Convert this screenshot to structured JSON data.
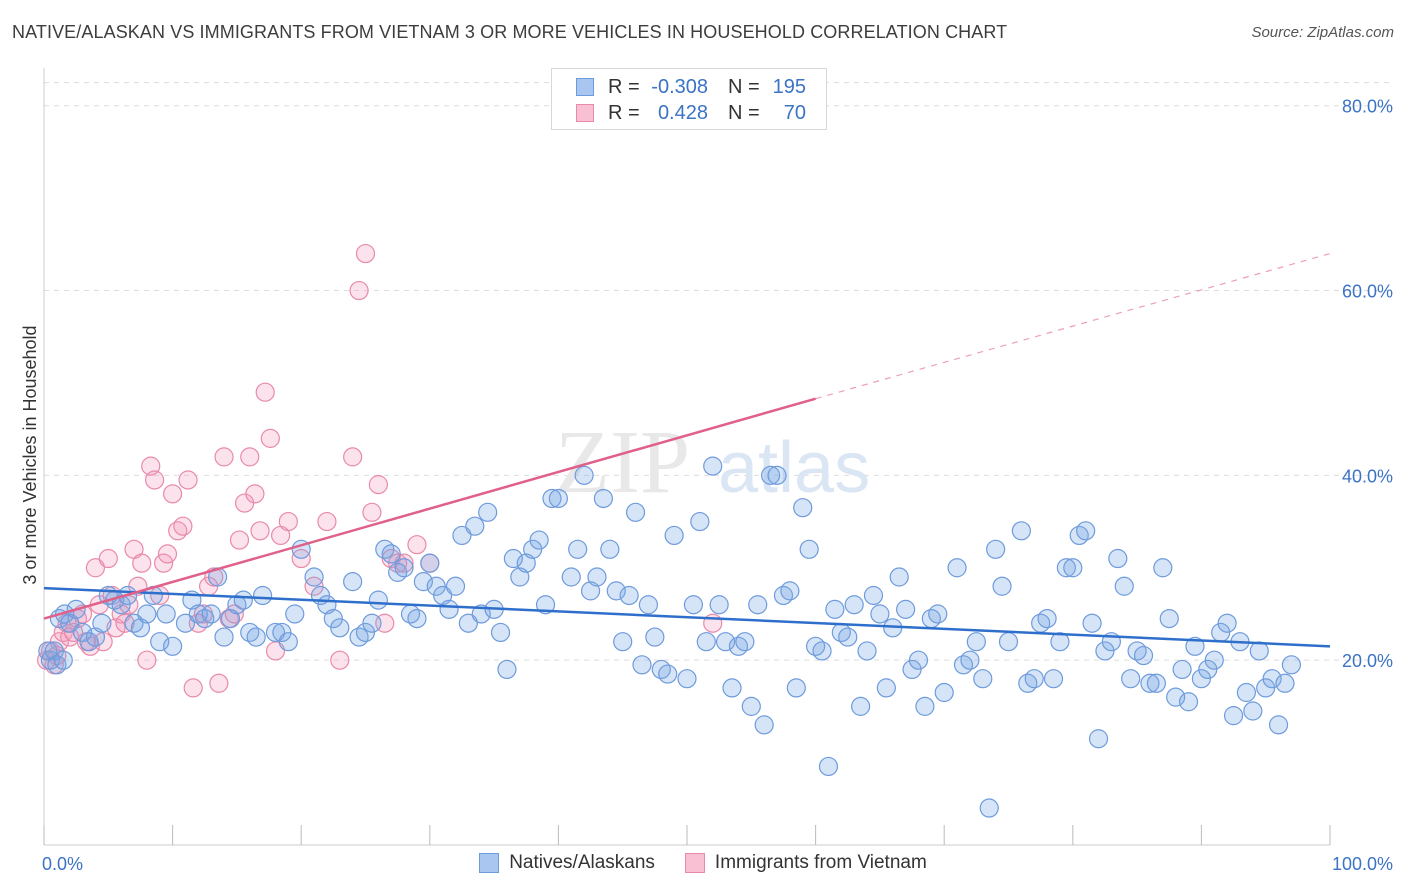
{
  "title": "NATIVE/ALASKAN VS IMMIGRANTS FROM VIETNAM 3 OR MORE VEHICLES IN HOUSEHOLD CORRELATION CHART",
  "source": "Source: ZipAtlas.com",
  "watermark": {
    "zip": "ZIP",
    "atlas": "atlas"
  },
  "legend_top": [
    {
      "swatch_color": "#a9c6f0",
      "border_color": "#6e9bdc",
      "r_label": "R =",
      "r_value": "-0.308",
      "n_label": "N =",
      "n_value": "195"
    },
    {
      "swatch_color": "#f8c0d2",
      "border_color": "#e88aa8",
      "r_label": "R =",
      "r_value": "0.428",
      "n_label": "N =",
      "n_value": "70"
    }
  ],
  "legend_bottom": [
    {
      "label": "Natives/Alaskans",
      "swatch_color": "#a9c6f0",
      "border_color": "#6e9bdc"
    },
    {
      "label": "Immigrants from Vietnam",
      "swatch_color": "#f8c0d2",
      "border_color": "#e88aa8"
    }
  ],
  "colors": {
    "blue_fill": "rgba(120,165,230,0.30)",
    "blue_stroke": "#6e9bdc",
    "blue_line": "#2f6fcc",
    "pink_fill": "rgba(245,150,185,0.28)",
    "pink_stroke": "#e88aa8",
    "pink_line": "#e0608a",
    "tick_label": "#3b73c5",
    "grid": "#dddddd"
  },
  "chart_data": {
    "type": "scatter",
    "ylabel": "3 or more Vehicles in Household",
    "xlim": [
      0,
      100
    ],
    "ylim": [
      0,
      83
    ],
    "x_tick_labels": [
      {
        "value": 0,
        "label": "0.0%"
      },
      {
        "value": 100,
        "label": "100.0%"
      }
    ],
    "y_tick_labels": [
      {
        "value": 20,
        "label": "20.0%"
      },
      {
        "value": 40,
        "label": "40.0%"
      },
      {
        "value": 60,
        "label": "60.0%"
      },
      {
        "value": 80,
        "label": "80.0%"
      }
    ],
    "grid": true,
    "series": [
      {
        "name": "Natives/Alaskans",
        "trend": {
          "x0": 0,
          "y0": 27.8,
          "x1": 100,
          "y1": 21.5
        },
        "points": [
          [
            0.3,
            21
          ],
          [
            0.5,
            20
          ],
          [
            0.8,
            21
          ],
          [
            1,
            19.5
          ],
          [
            1.5,
            20
          ],
          [
            1.2,
            24.5
          ],
          [
            1.6,
            25
          ],
          [
            2,
            24
          ],
          [
            2.5,
            25.5
          ],
          [
            3,
            23
          ],
          [
            3.5,
            22
          ],
          [
            4,
            22.5
          ],
          [
            4.5,
            24
          ],
          [
            5,
            27
          ],
          [
            5.5,
            26.5
          ],
          [
            6,
            26
          ],
          [
            6.5,
            27
          ],
          [
            7,
            24
          ],
          [
            7.5,
            23.5
          ],
          [
            8,
            25
          ],
          [
            8.5,
            27
          ],
          [
            9,
            22
          ],
          [
            9.5,
            25
          ],
          [
            10,
            21.5
          ],
          [
            11,
            24
          ],
          [
            11.5,
            26.5
          ],
          [
            12,
            25
          ],
          [
            12.5,
            24.5
          ],
          [
            13,
            25
          ],
          [
            13.5,
            29
          ],
          [
            14,
            22.5
          ],
          [
            14.5,
            24.5
          ],
          [
            15,
            26
          ],
          [
            15.5,
            26.5
          ],
          [
            16,
            23
          ],
          [
            16.5,
            22.5
          ],
          [
            17,
            27
          ],
          [
            18,
            23
          ],
          [
            18.5,
            23
          ],
          [
            19,
            22
          ],
          [
            19.5,
            25
          ],
          [
            20,
            32
          ],
          [
            21,
            29
          ],
          [
            21.5,
            27
          ],
          [
            22,
            26
          ],
          [
            22.5,
            24.5
          ],
          [
            23,
            23.5
          ],
          [
            24,
            28.5
          ],
          [
            24.5,
            22.5
          ],
          [
            25,
            23
          ],
          [
            25.5,
            24
          ],
          [
            26,
            26.5
          ],
          [
            26.5,
            32
          ],
          [
            27,
            31.5
          ],
          [
            27.5,
            29.5
          ],
          [
            28,
            30
          ],
          [
            28.5,
            25
          ],
          [
            29,
            24.5
          ],
          [
            29.5,
            28.5
          ],
          [
            30,
            30.5
          ],
          [
            30.5,
            28
          ],
          [
            31,
            27
          ],
          [
            31.5,
            25.5
          ],
          [
            32,
            28
          ],
          [
            32.5,
            33.5
          ],
          [
            33,
            24
          ],
          [
            33.5,
            34.5
          ],
          [
            34,
            25
          ],
          [
            34.5,
            36
          ],
          [
            35,
            25.5
          ],
          [
            35.5,
            23
          ],
          [
            36,
            19
          ],
          [
            36.5,
            31
          ],
          [
            37,
            29
          ],
          [
            37.5,
            30.5
          ],
          [
            38,
            32
          ],
          [
            38.5,
            33
          ],
          [
            39,
            26
          ],
          [
            39.5,
            37.5
          ],
          [
            40,
            37.5
          ],
          [
            41,
            29
          ],
          [
            41.5,
            32
          ],
          [
            42,
            40
          ],
          [
            42.5,
            27.5
          ],
          [
            43,
            29
          ],
          [
            43.5,
            37.5
          ],
          [
            44,
            32
          ],
          [
            44.5,
            27.5
          ],
          [
            45,
            22
          ],
          [
            45.5,
            27
          ],
          [
            46,
            36
          ],
          [
            46.5,
            19.5
          ],
          [
            47,
            26
          ],
          [
            47.5,
            22.5
          ],
          [
            48,
            19
          ],
          [
            48.5,
            18.5
          ],
          [
            49,
            33.5
          ],
          [
            50,
            18
          ],
          [
            50.5,
            26
          ],
          [
            51,
            35
          ],
          [
            51.5,
            22
          ],
          [
            52,
            41
          ],
          [
            52.5,
            26
          ],
          [
            53,
            22
          ],
          [
            53.5,
            17
          ],
          [
            54,
            21.5
          ],
          [
            54.5,
            22
          ],
          [
            55,
            15
          ],
          [
            55.5,
            26
          ],
          [
            56,
            13
          ],
          [
            56.5,
            40
          ],
          [
            57,
            40
          ],
          [
            57.5,
            27
          ],
          [
            58,
            27.5
          ],
          [
            58.5,
            17
          ],
          [
            59,
            36.5
          ],
          [
            59.5,
            32
          ],
          [
            60,
            21.5
          ],
          [
            60.5,
            21
          ],
          [
            61,
            8.5
          ],
          [
            61.5,
            25.5
          ],
          [
            62,
            23
          ],
          [
            62.5,
            22.5
          ],
          [
            63,
            26
          ],
          [
            63.5,
            15
          ],
          [
            64,
            21
          ],
          [
            64.5,
            27
          ],
          [
            65,
            25
          ],
          [
            65.5,
            17
          ],
          [
            66,
            23.5
          ],
          [
            66.5,
            29
          ],
          [
            67,
            25.5
          ],
          [
            67.5,
            19
          ],
          [
            68,
            20
          ],
          [
            68.5,
            15
          ],
          [
            69,
            24.5
          ],
          [
            69.5,
            25
          ],
          [
            70,
            16.5
          ],
          [
            71,
            30
          ],
          [
            71.5,
            19.5
          ],
          [
            72,
            20
          ],
          [
            72.5,
            22
          ],
          [
            73,
            18
          ],
          [
            73.5,
            4
          ],
          [
            74,
            32
          ],
          [
            74.5,
            28
          ],
          [
            75,
            22
          ],
          [
            76,
            34
          ],
          [
            76.5,
            17.5
          ],
          [
            77,
            18
          ],
          [
            77.5,
            24
          ],
          [
            78,
            24.5
          ],
          [
            78.5,
            18
          ],
          [
            79,
            22
          ],
          [
            79.5,
            30
          ],
          [
            80,
            30
          ],
          [
            80.5,
            33.5
          ],
          [
            81,
            34
          ],
          [
            81.5,
            24
          ],
          [
            82,
            11.5
          ],
          [
            82.5,
            21
          ],
          [
            83,
            22
          ],
          [
            83.5,
            31
          ],
          [
            84,
            28
          ],
          [
            84.5,
            18
          ],
          [
            85,
            21
          ],
          [
            85.5,
            20.5
          ],
          [
            86,
            17.5
          ],
          [
            86.5,
            17.5
          ],
          [
            87,
            30
          ],
          [
            87.5,
            24.5
          ],
          [
            88,
            16
          ],
          [
            88.5,
            19
          ],
          [
            89,
            15.5
          ],
          [
            89.5,
            21.5
          ],
          [
            90,
            18
          ],
          [
            90.5,
            19
          ],
          [
            91,
            20
          ],
          [
            91.5,
            23
          ],
          [
            92,
            24
          ],
          [
            92.5,
            14
          ],
          [
            93,
            22
          ],
          [
            93.5,
            16.5
          ],
          [
            94,
            14.5
          ],
          [
            94.5,
            21
          ],
          [
            95,
            17
          ],
          [
            95.5,
            18
          ],
          [
            96,
            13
          ],
          [
            96.5,
            17.5
          ],
          [
            97,
            19.5
          ]
        ]
      },
      {
        "name": "Immigrants from Vietnam",
        "trend": {
          "x0": 0,
          "y0": 24.5,
          "x1": 60,
          "y1": 48.3
        },
        "trend_dashed": {
          "x0": 60,
          "y0": 48.3,
          "x1": 100,
          "y1": 64
        },
        "points": [
          [
            0.2,
            20
          ],
          [
            0.5,
            21
          ],
          [
            0.8,
            19.5
          ],
          [
            1,
            20.5
          ],
          [
            1.2,
            22
          ],
          [
            1.5,
            23
          ],
          [
            1.8,
            24
          ],
          [
            2,
            22.5
          ],
          [
            2.3,
            23
          ],
          [
            2.6,
            24.5
          ],
          [
            3,
            25
          ],
          [
            3.3,
            22
          ],
          [
            3.6,
            21.5
          ],
          [
            4,
            30
          ],
          [
            4.3,
            26
          ],
          [
            4.6,
            22
          ],
          [
            5,
            31
          ],
          [
            5.3,
            27
          ],
          [
            5.6,
            23.5
          ],
          [
            6,
            25
          ],
          [
            6.3,
            24
          ],
          [
            6.6,
            26
          ],
          [
            7,
            32
          ],
          [
            7.3,
            28
          ],
          [
            7.6,
            30.5
          ],
          [
            8,
            20
          ],
          [
            8.3,
            41
          ],
          [
            8.6,
            39.5
          ],
          [
            9,
            27
          ],
          [
            9.3,
            30.5
          ],
          [
            9.6,
            31.5
          ],
          [
            10,
            38
          ],
          [
            10.4,
            34
          ],
          [
            10.8,
            34.5
          ],
          [
            11.2,
            39.5
          ],
          [
            11.6,
            17
          ],
          [
            12,
            24
          ],
          [
            12.4,
            25
          ],
          [
            12.8,
            28
          ],
          [
            13.2,
            29
          ],
          [
            13.6,
            17.5
          ],
          [
            14,
            42
          ],
          [
            14.4,
            24.5
          ],
          [
            14.8,
            25
          ],
          [
            15.2,
            33
          ],
          [
            15.6,
            37
          ],
          [
            16,
            42
          ],
          [
            16.4,
            38
          ],
          [
            16.8,
            34
          ],
          [
            17.2,
            49
          ],
          [
            17.6,
            44
          ],
          [
            18,
            21
          ],
          [
            18.4,
            33.5
          ],
          [
            19,
            35
          ],
          [
            20,
            31
          ],
          [
            21,
            28
          ],
          [
            22,
            35
          ],
          [
            23,
            20
          ],
          [
            24,
            42
          ],
          [
            24.5,
            60
          ],
          [
            25,
            64
          ],
          [
            25.5,
            36
          ],
          [
            26,
            39
          ],
          [
            26.5,
            24
          ],
          [
            27,
            31
          ],
          [
            27.5,
            30.5
          ],
          [
            28,
            30.5
          ],
          [
            29,
            32.5
          ],
          [
            30,
            30.5
          ],
          [
            52,
            24
          ]
        ]
      }
    ]
  }
}
